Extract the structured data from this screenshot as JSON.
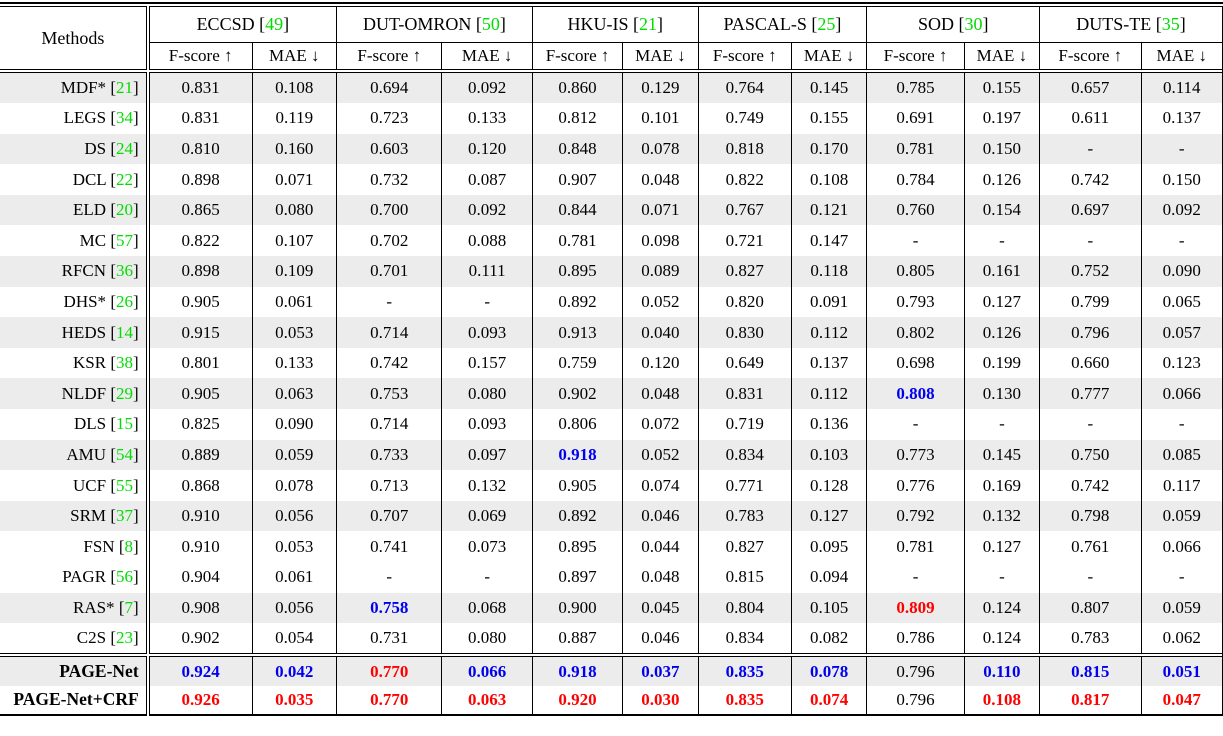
{
  "table": {
    "methods_header": "Methods",
    "metric_headers": [
      "F-score ↑",
      "MAE ↓"
    ],
    "cite_open": " [",
    "cite_close": "]",
    "datasets": [
      {
        "name": "ECCSD",
        "cite": "49"
      },
      {
        "name": "DUT-OMRON",
        "cite": "50"
      },
      {
        "name": "HKU-IS",
        "cite": "21"
      },
      {
        "name": "PASCAL-S",
        "cite": "25"
      },
      {
        "name": "SOD",
        "cite": "30"
      },
      {
        "name": "DUTS-TE",
        "cite": "35"
      }
    ],
    "colors": {
      "citation_green": "#00dd00",
      "best_red": "#fe0000",
      "second_best_blue": "#0000ee",
      "row_shade": "#ececec"
    },
    "rows": [
      {
        "method": "MDF*",
        "cite": "21",
        "shade": true,
        "values": [
          "0.831",
          "0.108",
          "0.694",
          "0.092",
          "0.860",
          "0.129",
          "0.764",
          "0.145",
          "0.785",
          "0.155",
          "0.657",
          "0.114"
        ]
      },
      {
        "method": "LEGS",
        "cite": "34",
        "shade": false,
        "values": [
          "0.831",
          "0.119",
          "0.723",
          "0.133",
          "0.812",
          "0.101",
          "0.749",
          "0.155",
          "0.691",
          "0.197",
          "0.611",
          "0.137"
        ]
      },
      {
        "method": "DS",
        "cite": "24",
        "shade": true,
        "values": [
          "0.810",
          "0.160",
          "0.603",
          "0.120",
          "0.848",
          "0.078",
          "0.818",
          "0.170",
          "0.781",
          "0.150",
          "-",
          "-"
        ]
      },
      {
        "method": "DCL",
        "cite": "22",
        "shade": false,
        "values": [
          "0.898",
          "0.071",
          "0.732",
          "0.087",
          "0.907",
          "0.048",
          "0.822",
          "0.108",
          "0.784",
          "0.126",
          "0.742",
          "0.150"
        ]
      },
      {
        "method": "ELD",
        "cite": "20",
        "shade": true,
        "values": [
          "0.865",
          "0.080",
          "0.700",
          "0.092",
          "0.844",
          "0.071",
          "0.767",
          "0.121",
          "0.760",
          "0.154",
          "0.697",
          "0.092"
        ]
      },
      {
        "method": "MC",
        "cite": "57",
        "shade": false,
        "values": [
          "0.822",
          "0.107",
          "0.702",
          "0.088",
          "0.781",
          "0.098",
          "0.721",
          "0.147",
          "-",
          "-",
          "-",
          "-"
        ]
      },
      {
        "method": "RFCN",
        "cite": "36",
        "shade": true,
        "values": [
          "0.898",
          "0.109",
          "0.701",
          "0.111",
          "0.895",
          "0.089",
          "0.827",
          "0.118",
          "0.805",
          "0.161",
          "0.752",
          "0.090"
        ]
      },
      {
        "method": "DHS*",
        "cite": "26",
        "shade": false,
        "values": [
          "0.905",
          "0.061",
          "-",
          "-",
          "0.892",
          "0.052",
          "0.820",
          "0.091",
          "0.793",
          "0.127",
          "0.799",
          "0.065"
        ]
      },
      {
        "method": "HEDS",
        "cite": "14",
        "shade": true,
        "values": [
          "0.915",
          "0.053",
          "0.714",
          "0.093",
          "0.913",
          "0.040",
          "0.830",
          "0.112",
          "0.802",
          "0.126",
          "0.796",
          "0.057"
        ]
      },
      {
        "method": "KSR",
        "cite": "38",
        "shade": false,
        "values": [
          "0.801",
          "0.133",
          "0.742",
          "0.157",
          "0.759",
          "0.120",
          "0.649",
          "0.137",
          "0.698",
          "0.199",
          "0.660",
          "0.123"
        ]
      },
      {
        "method": "NLDF",
        "cite": "29",
        "shade": true,
        "values": [
          "0.905",
          "0.063",
          "0.753",
          "0.080",
          "0.902",
          "0.048",
          "0.831",
          "0.112",
          "0.808",
          "0.130",
          "0.777",
          "0.066"
        ],
        "styles": [
          "",
          "",
          "",
          "",
          "",
          "",
          "",
          "",
          "blue",
          "",
          "",
          ""
        ]
      },
      {
        "method": "DLS",
        "cite": "15",
        "shade": false,
        "values": [
          "0.825",
          "0.090",
          "0.714",
          "0.093",
          "0.806",
          "0.072",
          "0.719",
          "0.136",
          "-",
          "-",
          "-",
          "-"
        ]
      },
      {
        "method": "AMU",
        "cite": "54",
        "shade": true,
        "values": [
          "0.889",
          "0.059",
          "0.733",
          "0.097",
          "0.918",
          "0.052",
          "0.834",
          "0.103",
          "0.773",
          "0.145",
          "0.750",
          "0.085"
        ],
        "styles": [
          "",
          "",
          "",
          "",
          "blue",
          "",
          "",
          "",
          "",
          "",
          "",
          ""
        ]
      },
      {
        "method": "UCF",
        "cite": "55",
        "shade": false,
        "values": [
          "0.868",
          "0.078",
          "0.713",
          "0.132",
          "0.905",
          "0.074",
          "0.771",
          "0.128",
          "0.776",
          "0.169",
          "0.742",
          "0.117"
        ]
      },
      {
        "method": "SRM",
        "cite": "37",
        "shade": true,
        "values": [
          "0.910",
          "0.056",
          "0.707",
          "0.069",
          "0.892",
          "0.046",
          "0.783",
          "0.127",
          "0.792",
          "0.132",
          "0.798",
          "0.059"
        ]
      },
      {
        "method": "FSN",
        "cite": "8",
        "shade": false,
        "values": [
          "0.910",
          "0.053",
          "0.741",
          "0.073",
          "0.895",
          "0.044",
          "0.827",
          "0.095",
          "0.781",
          "0.127",
          "0.761",
          "0.066"
        ]
      },
      {
        "method": "PAGR",
        "cite": "56",
        "shade": false,
        "values": [
          "0.904",
          "0.061",
          "-",
          "-",
          "0.897",
          "0.048",
          "0.815",
          "0.094",
          "-",
          "-",
          "-",
          "-"
        ]
      },
      {
        "method": "RAS*",
        "cite": "7",
        "shade": true,
        "values": [
          "0.908",
          "0.056",
          "0.758",
          "0.068",
          "0.900",
          "0.045",
          "0.804",
          "0.105",
          "0.809",
          "0.124",
          "0.807",
          "0.059"
        ],
        "styles": [
          "",
          "",
          "blue",
          "",
          "",
          "",
          "",
          "",
          "red",
          "",
          "",
          ""
        ]
      },
      {
        "method": "C2S",
        "cite": "23",
        "shade": false,
        "values": [
          "0.902",
          "0.054",
          "0.731",
          "0.080",
          "0.887",
          "0.046",
          "0.834",
          "0.082",
          "0.786",
          "0.124",
          "0.783",
          "0.062"
        ]
      }
    ],
    "footer_rows": [
      {
        "method": "PAGE-Net",
        "shade": true,
        "values": [
          "0.924",
          "0.042",
          "0.770",
          "0.066",
          "0.918",
          "0.037",
          "0.835",
          "0.078",
          "0.796",
          "0.110",
          "0.815",
          "0.051"
        ],
        "styles": [
          "blue",
          "blue",
          "red",
          "blue",
          "blue",
          "blue",
          "blue",
          "blue",
          "",
          "blue",
          "blue",
          "blue"
        ]
      },
      {
        "method": "PAGE-Net+CRF",
        "shade": false,
        "values": [
          "0.926",
          "0.035",
          "0.770",
          "0.063",
          "0.920",
          "0.030",
          "0.835",
          "0.074",
          "0.796",
          "0.108",
          "0.817",
          "0.047"
        ],
        "styles": [
          "red",
          "red",
          "red",
          "red",
          "red",
          "red",
          "red",
          "red",
          "",
          "red",
          "red",
          "red"
        ]
      }
    ]
  }
}
